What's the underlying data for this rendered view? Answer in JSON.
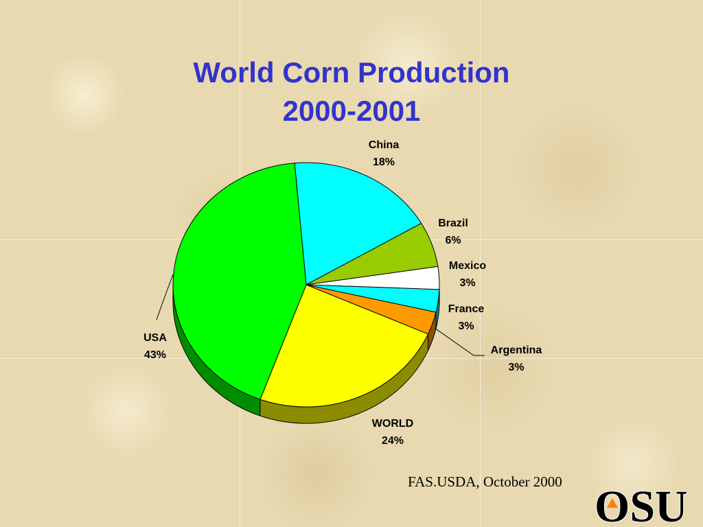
{
  "slide": {
    "title_line1": "World Corn Production",
    "title_line2": "2000-2001",
    "source": "FAS.USDA, October 2000",
    "logo_text": "OSU",
    "title_color": "#3333cc"
  },
  "chart_data": {
    "type": "pie",
    "title": "World Corn Production 2000-2001",
    "slices": [
      {
        "label": "China",
        "value": 18,
        "value_label": "18%",
        "color": "#00ffff"
      },
      {
        "label": "Brazil",
        "value": 6,
        "value_label": "6%",
        "color": "#99cc00"
      },
      {
        "label": "Mexico",
        "value": 3,
        "value_label": "3%",
        "color": "#ffffff"
      },
      {
        "label": "France",
        "value": 3,
        "value_label": "3%",
        "color": "#00ffff"
      },
      {
        "label": "Argentina",
        "value": 3,
        "value_label": "3%",
        "color": "#ff9900"
      },
      {
        "label": "WORLD",
        "value": 24,
        "value_label": "24%",
        "color": "#ffff00"
      },
      {
        "label": "USA",
        "value": 43,
        "value_label": "43%",
        "color": "#00ff00"
      }
    ],
    "style": "3d-tilted"
  }
}
